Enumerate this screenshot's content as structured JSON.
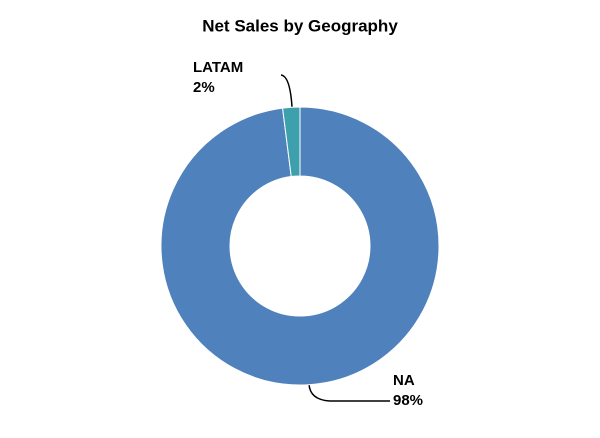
{
  "chart_data": {
    "type": "donut",
    "title": "Net Sales by Geography",
    "categories": [
      "NA",
      "LATAM"
    ],
    "values": [
      98,
      2
    ],
    "value_labels": [
      "98%",
      "2%"
    ],
    "colors": [
      "#4f81bd",
      "#3fa0ad"
    ]
  }
}
